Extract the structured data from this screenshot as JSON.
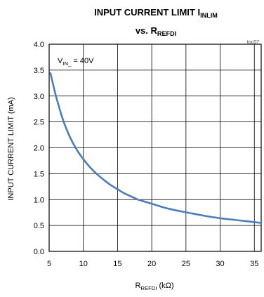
{
  "chart_data": {
    "type": "line",
    "title": {
      "line1_main": "INPUT CURRENT LIMIT I",
      "line1_sub": "INLIM",
      "line2_main": "vs. R",
      "line2_sub": "REFDI"
    },
    "figure_tag": "toc07",
    "annotation": {
      "main": "V",
      "sub": "IN_",
      "rest": " = 40V"
    },
    "xlabel": {
      "main": "R",
      "sub": "REFDI",
      "rest": " (kΩ)"
    },
    "ylabel": "INPUT CURRENT LIMIT (mA)",
    "xlim": [
      5,
      36
    ],
    "ylim": [
      0.0,
      4.0
    ],
    "xticks": [
      "5",
      "10",
      "15",
      "20",
      "25",
      "30",
      "35"
    ],
    "xtick_values": [
      5,
      10,
      15,
      20,
      25,
      30,
      35
    ],
    "yticks": [
      "0.0",
      "0.5",
      "1.0",
      "1.5",
      "2.0",
      "2.5",
      "3.0",
      "3.5",
      "4.0"
    ],
    "ytick_values": [
      0,
      0.5,
      1,
      1.5,
      2,
      2.5,
      3,
      3.5,
      4
    ],
    "grid": true,
    "series": [
      {
        "color": "#4a7ebb",
        "x": [
          5.2,
          6,
          7,
          8,
          9,
          10,
          11,
          12,
          13,
          14,
          15,
          16,
          17,
          18,
          19,
          20,
          22,
          24,
          26,
          28,
          30,
          32,
          34,
          36
        ],
        "y": [
          3.44,
          3.0,
          2.55,
          2.22,
          1.97,
          1.78,
          1.62,
          1.49,
          1.38,
          1.28,
          1.2,
          1.12,
          1.06,
          1.0,
          0.96,
          0.92,
          0.84,
          0.78,
          0.73,
          0.68,
          0.64,
          0.61,
          0.58,
          0.55
        ]
      }
    ]
  }
}
